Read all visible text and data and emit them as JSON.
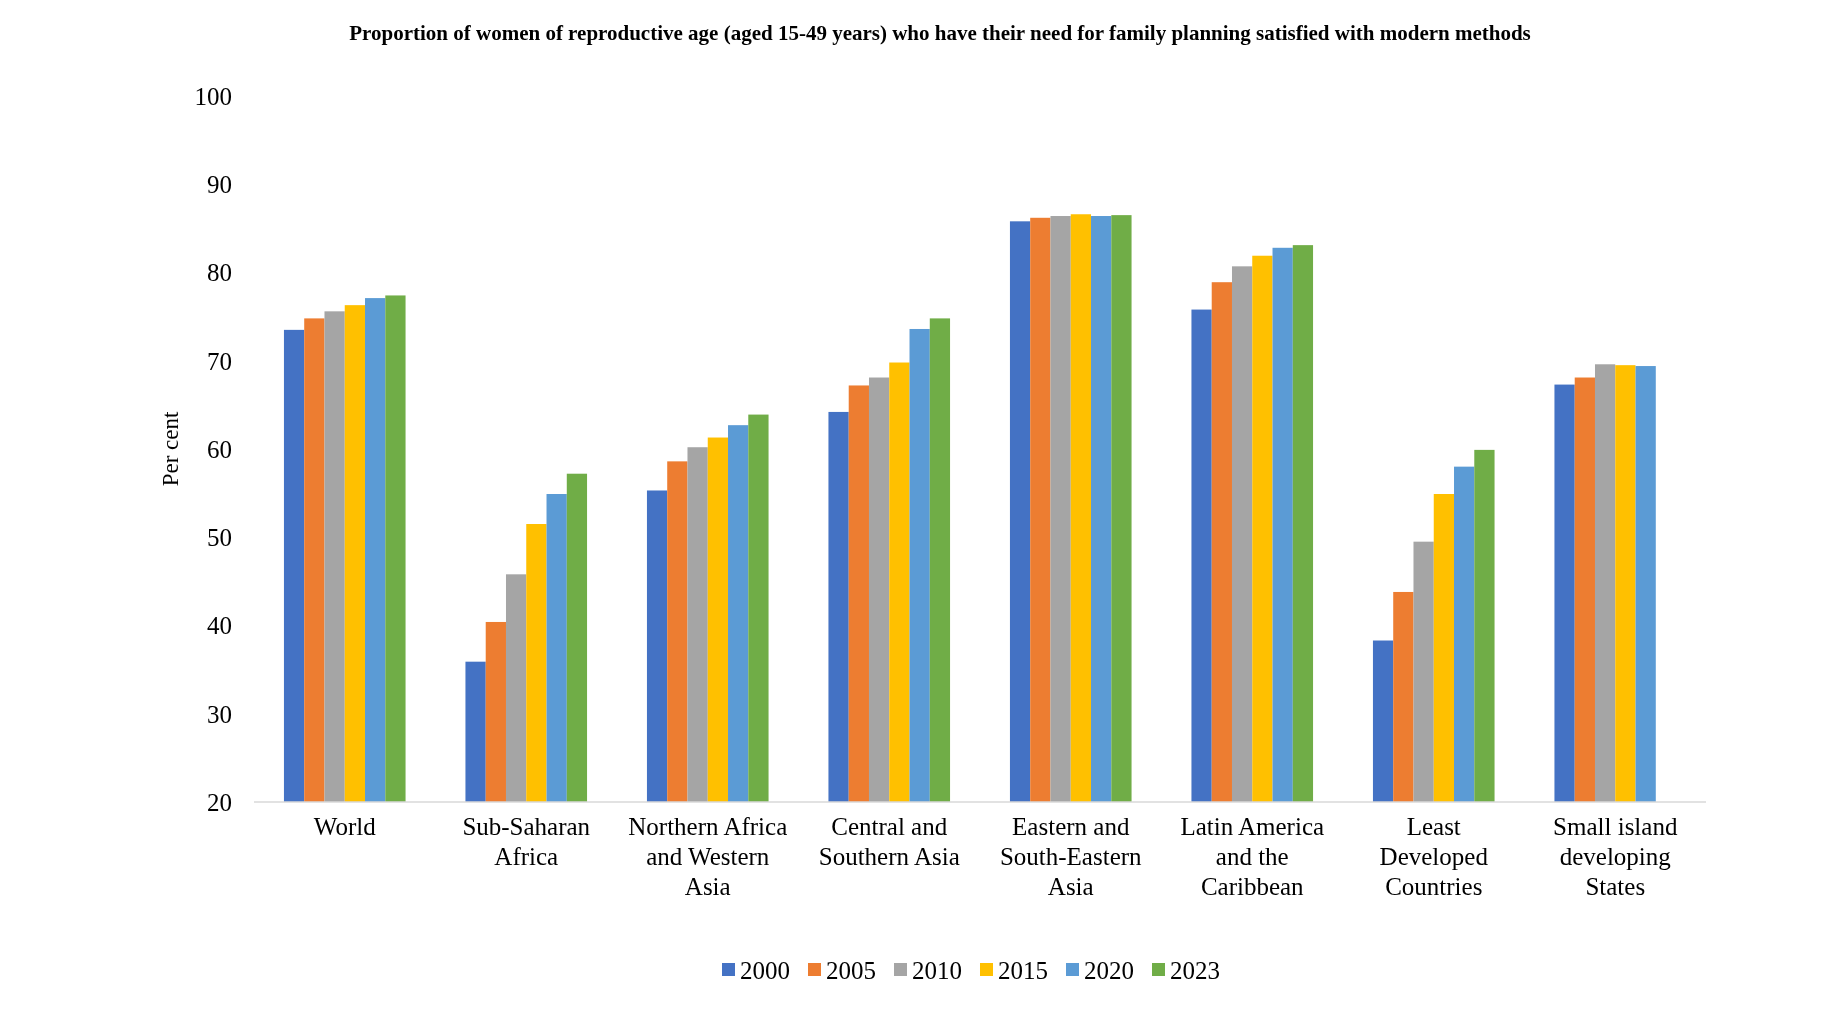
{
  "chart_data": {
    "type": "bar",
    "title": "Proportion of women of reproductive age (aged 15-49 years) who have their need for family planning satisfied with modern methods",
    "ylabel": "Per cent",
    "categories": [
      "World",
      "Sub-Saharan Africa",
      "Northern Africa and Western Asia",
      "Central and Southern Asia",
      "Eastern and South-Eastern Asia",
      "Latin America and the Caribbean",
      "Least Developed Countries",
      "Small island developing States"
    ],
    "series": [
      {
        "name": "2000",
        "color": "#4472c4",
        "values": [
          73.5,
          35.9,
          55.3,
          64.2,
          85.8,
          75.8,
          38.3,
          67.3
        ]
      },
      {
        "name": "2005",
        "color": "#ed7d31",
        "values": [
          74.8,
          40.4,
          58.6,
          67.2,
          86.2,
          78.9,
          43.8,
          68.1
        ]
      },
      {
        "name": "2010",
        "color": "#a5a5a5",
        "values": [
          75.6,
          45.8,
          60.2,
          68.1,
          86.4,
          80.7,
          49.5,
          69.6
        ]
      },
      {
        "name": "2015",
        "color": "#ffc000",
        "values": [
          76.3,
          51.5,
          61.3,
          69.8,
          86.6,
          81.9,
          54.9,
          69.5
        ]
      },
      {
        "name": "2020",
        "color": "#5b9bd5",
        "values": [
          77.1,
          54.9,
          62.7,
          73.6,
          86.4,
          82.8,
          58.0,
          69.4
        ]
      },
      {
        "name": "2023",
        "color": "#70ad47",
        "values": [
          77.4,
          57.2,
          63.9,
          74.8,
          86.5,
          83.1,
          59.9,
          null
        ]
      }
    ],
    "ylim": [
      20,
      100
    ],
    "yticks": [
      20,
      30,
      40,
      50,
      60,
      70,
      80,
      90,
      100
    ],
    "grid": false,
    "legend": "bottom"
  }
}
